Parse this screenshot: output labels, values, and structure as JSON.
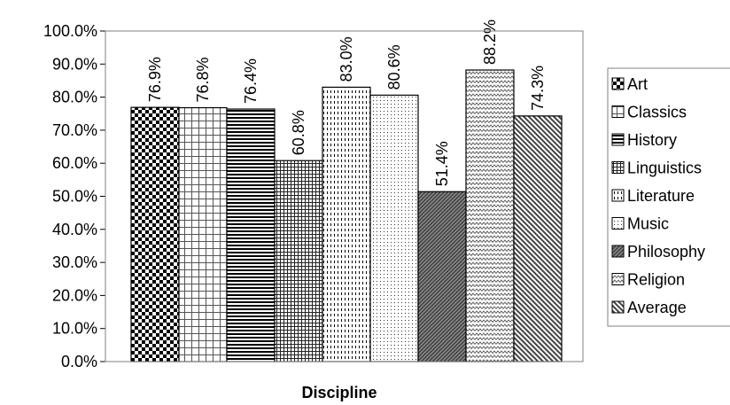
{
  "chart_data": {
    "type": "bar",
    "title": "",
    "xlabel": "Discipline",
    "ylabel": "",
    "ylim": [
      0,
      100
    ],
    "y_tick_step": 10,
    "y_tick_format": "percent-1dp",
    "grid": false,
    "legend_position": "right",
    "categories": [
      "Art",
      "Classics",
      "History",
      "Linguistics",
      "Literature",
      "Music",
      "Philosophy",
      "Religion",
      "Average"
    ],
    "values": [
      76.9,
      76.8,
      76.4,
      60.8,
      83.0,
      80.6,
      51.4,
      88.2,
      74.3
    ],
    "value_labels": [
      "76.9%",
      "76.8%",
      "76.4%",
      "60.8%",
      "83.0%",
      "80.6%",
      "51.4%",
      "88.2%",
      "74.3%"
    ],
    "patterns": [
      "checkerboard",
      "square-grid-light",
      "horizontal-stripes",
      "small-grid",
      "vertical-dashes",
      "dots",
      "diagonal-dense-dark",
      "zigzag",
      "diagonal-stripes"
    ],
    "colors": {
      "background": "#ffffff",
      "plot_area": "#ffffff",
      "bar_outline": "#000000",
      "text": "#000000"
    }
  }
}
